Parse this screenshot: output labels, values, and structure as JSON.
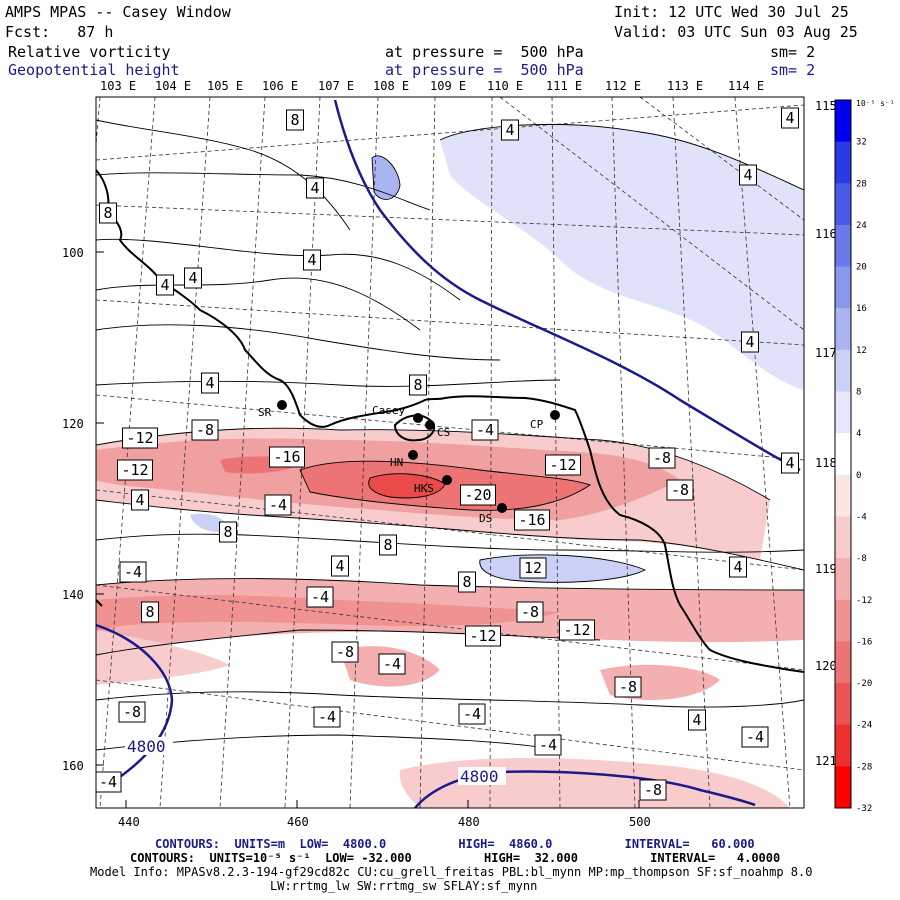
{
  "header": {
    "title": "AMPS MPAS -- Casey Window",
    "init": "Init: 12 UTC Wed 30 Jul 25",
    "fcst": "Fcst:   87 h",
    "valid": "Valid: 03 UTC Sun 03 Aug 25",
    "field1_name": "Relative vorticity",
    "field1_level": "at pressure =  500 hPa",
    "field1_sm": "sm= 2",
    "field2_name": "Geopotential height",
    "field2_level": "at pressure =  500 hPa",
    "field2_sm": "sm= 2"
  },
  "map": {
    "top_lon_labels": [
      "103 E",
      "104 E",
      "105 E",
      "106 E",
      "107 E",
      "108 E",
      "109 E",
      "110 E",
      "111 E",
      "112 E",
      "113 E",
      "114 E"
    ],
    "right_lon_labels": [
      "115 E",
      "116 E",
      "117 E",
      "118 E",
      "119 E",
      "120 E",
      "121 E"
    ],
    "y_ticks": [
      "100",
      "120",
      "140",
      "160"
    ],
    "x_ticks": [
      "440",
      "460",
      "480",
      "500"
    ],
    "stations": [
      {
        "id": "SR",
        "label": "SR"
      },
      {
        "id": "Casey",
        "label": "Casey"
      },
      {
        "id": "CS",
        "label": "CS"
      },
      {
        "id": "CP",
        "label": "CP"
      },
      {
        "id": "HN",
        "label": "HN"
      },
      {
        "id": "HKS",
        "label": "HKS"
      },
      {
        "id": "DS",
        "label": "DS"
      }
    ],
    "height_labels": [
      "4800",
      "4800"
    ],
    "contour_labels": [
      "8",
      "4",
      "4",
      "8",
      "4",
      "4",
      "4",
      "4",
      "4",
      "8",
      "4",
      "4",
      "-12",
      "-8",
      "-16",
      "-4",
      "-12",
      "-12",
      "-20",
      "-16",
      "-8",
      "-8",
      "4",
      "8",
      "-4",
      "8",
      "12",
      "8",
      "4",
      "-4",
      "-4",
      "4",
      "8",
      "-8",
      "-12",
      "-12",
      "-8",
      "-4",
      "-8",
      "-8",
      "-4",
      "-4",
      "4",
      "-4",
      "-4",
      "-4",
      "4",
      "-8"
    ]
  },
  "colorbar": {
    "unit": "10⁻⁵ s⁻¹",
    "labels": [
      "32",
      "28",
      "24",
      "20",
      "16",
      "12",
      "8",
      "4",
      "0",
      "-4",
      "-8",
      "-12",
      "-16",
      "-20",
      "-24",
      "-28",
      "-32"
    ],
    "colors": [
      "#0000ee",
      "#2a3ae6",
      "#4a5ae6",
      "#6a7ae8",
      "#8a98ec",
      "#aab4f0",
      "#cad0f6",
      "#e6e8fa",
      "#ffffff",
      "#fbe6e6",
      "#f8cccc",
      "#f4b0b0",
      "#f09292",
      "#ec7474",
      "#ea5454",
      "#ee3030",
      "#ff0000"
    ]
  },
  "footer": {
    "contours_gph": "CONTOURS:  UNITS=m  LOW=  4800.0          HIGH=  4860.0          INTERVAL=   60.000",
    "contours_vort": "CONTOURS:  UNITS=10⁻⁵ s⁻¹  LOW= -32.000          HIGH=  32.000          INTERVAL=   4.0000",
    "model_info": "Model Info: MPASv8.2.3-194-gf29cd82c CU:cu_grell_freitas PBL:bl_mynn MP:mp_thompson SF:sf_noahmp 8.0",
    "model_info2": "LW:rrtmg_lw SW:rrtmg_sw SFLAY:sf_mynn"
  }
}
